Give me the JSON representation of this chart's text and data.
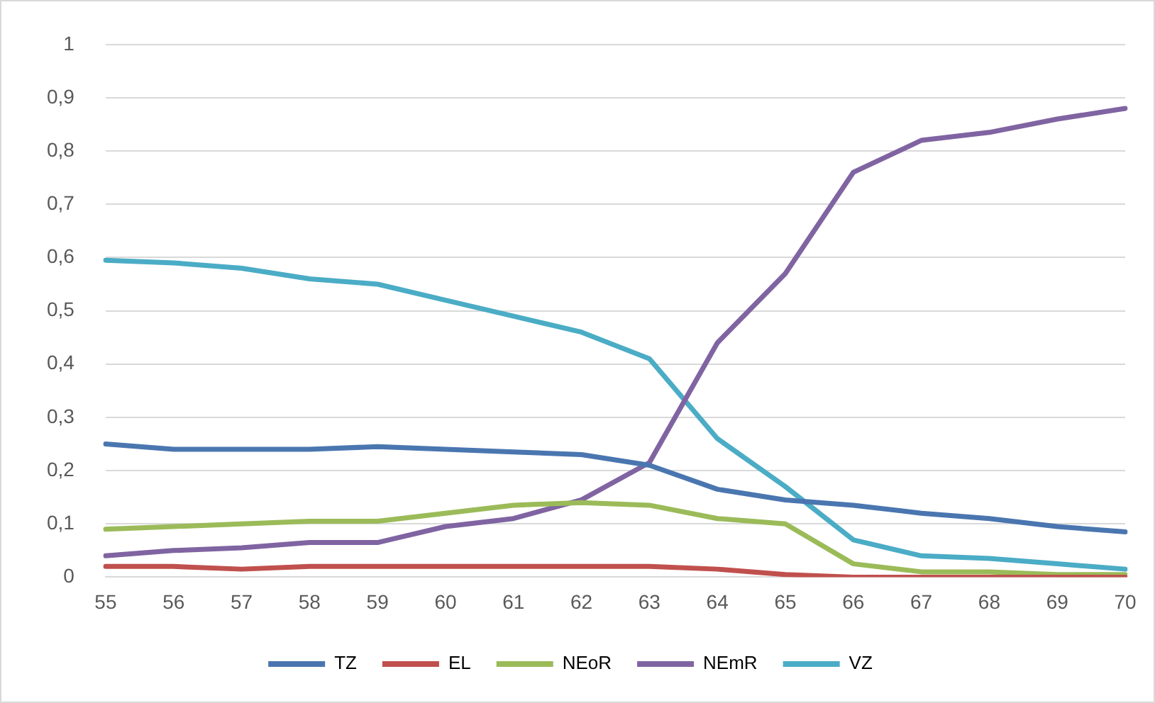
{
  "chart_data": {
    "type": "line",
    "categories": [
      "55",
      "56",
      "57",
      "58",
      "59",
      "60",
      "61",
      "62",
      "63",
      "64",
      "65",
      "66",
      "67",
      "68",
      "69",
      "70"
    ],
    "series": [
      {
        "name": "TZ",
        "color": "#4a76b0",
        "values": [
          0.25,
          0.24,
          0.24,
          0.24,
          0.245,
          0.24,
          0.235,
          0.23,
          0.21,
          0.165,
          0.145,
          0.135,
          0.12,
          0.11,
          0.095,
          0.085
        ]
      },
      {
        "name": "EL",
        "color": "#c0504d",
        "values": [
          0.02,
          0.02,
          0.015,
          0.02,
          0.02,
          0.02,
          0.02,
          0.02,
          0.02,
          0.015,
          0.005,
          0,
          0,
          0,
          0,
          0
        ]
      },
      {
        "name": "NEoR",
        "color": "#9bbb59",
        "values": [
          0.09,
          0.095,
          0.1,
          0.105,
          0.105,
          0.12,
          0.135,
          0.14,
          0.135,
          0.11,
          0.1,
          0.025,
          0.01,
          0.01,
          0.005,
          0.005
        ]
      },
      {
        "name": "NEmR",
        "color": "#8064a2",
        "values": [
          0.04,
          0.05,
          0.055,
          0.065,
          0.065,
          0.095,
          0.11,
          0.145,
          0.215,
          0.44,
          0.57,
          0.76,
          0.82,
          0.835,
          0.86,
          0.88
        ]
      },
      {
        "name": "VZ",
        "color": "#4bacc6",
        "values": [
          0.595,
          0.59,
          0.58,
          0.56,
          0.55,
          0.52,
          0.49,
          0.46,
          0.41,
          0.26,
          0.17,
          0.07,
          0.04,
          0.035,
          0.025,
          0.015
        ]
      }
    ],
    "ylim": [
      0,
      1
    ],
    "yticks": [
      0,
      {
        "value": 0.1,
        "label": "0,1"
      },
      {
        "value": 0.2,
        "label": "0,2"
      },
      {
        "value": 0.3,
        "label": "0,3"
      },
      {
        "value": 0.4,
        "label": "0,4"
      },
      {
        "value": 0.5,
        "label": "0,5"
      },
      {
        "value": 0.6,
        "label": "0,6"
      },
      {
        "value": 0.7,
        "label": "0,7"
      },
      {
        "value": 0.8,
        "label": "0,8"
      },
      {
        "value": 0.9,
        "label": "0,9"
      },
      1
    ],
    "grid": "y",
    "legend": "bottom",
    "marker": "none",
    "line_style": "solid"
  }
}
